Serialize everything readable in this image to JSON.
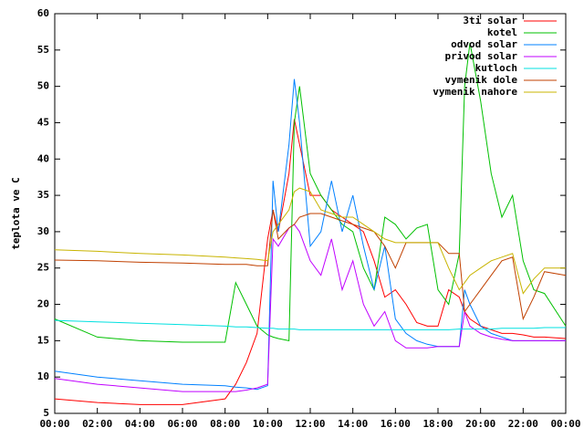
{
  "chart_data": {
    "type": "line",
    "y_label": "teplota ve C",
    "x": [
      0,
      2,
      4,
      6,
      8,
      8.5,
      9,
      9.5,
      10,
      10.25,
      10.5,
      11,
      11.25,
      11.5,
      12,
      12.5,
      13,
      13.5,
      14,
      14.5,
      15,
      15.5,
      16,
      16.5,
      17,
      17.5,
      18,
      18.5,
      19,
      19.25,
      19.5,
      20,
      20.5,
      21,
      21.5,
      22,
      22.5,
      23,
      24
    ],
    "xlim": [
      0,
      24
    ],
    "xticks": [
      {
        "value": 0,
        "label": "00:00"
      },
      {
        "value": 2,
        "label": "02:00"
      },
      {
        "value": 4,
        "label": "04:00"
      },
      {
        "value": 6,
        "label": "06:00"
      },
      {
        "value": 8,
        "label": "08:00"
      },
      {
        "value": 10,
        "label": "10:00"
      },
      {
        "value": 12,
        "label": "12:00"
      },
      {
        "value": 14,
        "label": "14:00"
      },
      {
        "value": 16,
        "label": "16:00"
      },
      {
        "value": 18,
        "label": "18:00"
      },
      {
        "value": 20,
        "label": "20:00"
      },
      {
        "value": 22,
        "label": "22:00"
      },
      {
        "value": 24,
        "label": "00:00"
      }
    ],
    "ylim": [
      5,
      60
    ],
    "yticks": [
      5,
      10,
      15,
      20,
      25,
      30,
      35,
      40,
      45,
      50,
      55,
      60
    ],
    "legend": "top-right",
    "series": [
      {
        "name": "3ti solar",
        "color": "#ff0000",
        "values": [
          7,
          6.5,
          6.2,
          6.2,
          7,
          9,
          12,
          16,
          29,
          33,
          30,
          38,
          45.5,
          42,
          35,
          35,
          33,
          32,
          31,
          30,
          26,
          21,
          22,
          20,
          17.5,
          17,
          17,
          22,
          21,
          19,
          18,
          17,
          16.5,
          16,
          16,
          15.8,
          15.5,
          15.5,
          15.3
        ]
      },
      {
        "name": "kotel",
        "color": "#00c000",
        "values": [
          18,
          15.5,
          15,
          14.8,
          14.8,
          23,
          20,
          17,
          15.8,
          15.5,
          15.3,
          15,
          45,
          50,
          38,
          35,
          33,
          31,
          30,
          25,
          22,
          32,
          31,
          29,
          30.5,
          31,
          22,
          20,
          27,
          50,
          56,
          48,
          38,
          32,
          35,
          26,
          22,
          21.5,
          17
        ]
      },
      {
        "name": "odvod solar",
        "color": "#0080ff",
        "values": [
          10.8,
          10,
          9.5,
          9,
          8.8,
          8.6,
          8.5,
          8.3,
          8.8,
          37,
          30,
          42,
          51,
          45,
          28,
          30,
          37,
          30,
          35,
          28,
          22,
          28,
          18,
          16,
          15,
          14.5,
          14.2,
          14.2,
          14.2,
          22,
          20,
          17,
          16,
          15.5,
          15,
          15,
          15,
          15,
          15
        ]
      },
      {
        "name": "privod solar",
        "color": "#c000ff",
        "values": [
          9.8,
          9,
          8.5,
          8,
          8,
          8,
          8.2,
          8.5,
          9,
          29,
          28,
          30.5,
          31,
          30,
          26,
          24,
          29,
          22,
          26,
          20,
          17,
          19,
          15,
          14,
          14,
          14,
          14.2,
          14.2,
          14.2,
          19,
          17,
          16,
          15.5,
          15.2,
          15,
          15,
          15,
          15,
          15
        ]
      },
      {
        "name": "kutloch",
        "color": "#00e0e0",
        "values": [
          17.8,
          17.6,
          17.4,
          17.2,
          17,
          16.9,
          16.9,
          16.8,
          16.7,
          16.7,
          16.6,
          16.6,
          16.6,
          16.5,
          16.5,
          16.5,
          16.5,
          16.5,
          16.5,
          16.5,
          16.5,
          16.5,
          16.5,
          16.5,
          16.5,
          16.5,
          16.5,
          16.5,
          16.6,
          16.6,
          16.6,
          16.6,
          16.6,
          16.7,
          16.7,
          16.7,
          16.7,
          16.8,
          16.8
        ]
      },
      {
        "name": "vymenik dole",
        "color": "#c04000",
        "values": [
          26.1,
          26,
          25.8,
          25.7,
          25.5,
          25.5,
          25.5,
          25.3,
          25.3,
          33,
          29,
          30.5,
          31,
          32,
          32.5,
          32.5,
          32,
          31.5,
          31,
          30.5,
          30,
          28,
          25,
          28.5,
          28.5,
          28.5,
          28.5,
          27,
          27,
          19,
          20,
          22,
          24,
          26,
          26.5,
          18,
          21,
          24.5,
          24
        ]
      },
      {
        "name": "vymenik nahore",
        "color": "#c8b400",
        "values": [
          27.5,
          27.3,
          27,
          26.8,
          26.5,
          26.4,
          26.3,
          26.2,
          26,
          30,
          31,
          33,
          35.5,
          36,
          35.5,
          33,
          32.5,
          32,
          32,
          31,
          30,
          29,
          28.5,
          28.5,
          28.5,
          28.5,
          28.5,
          25,
          22,
          23,
          24,
          25,
          26,
          26.5,
          27,
          21.5,
          23.5,
          25,
          25
        ]
      }
    ]
  }
}
